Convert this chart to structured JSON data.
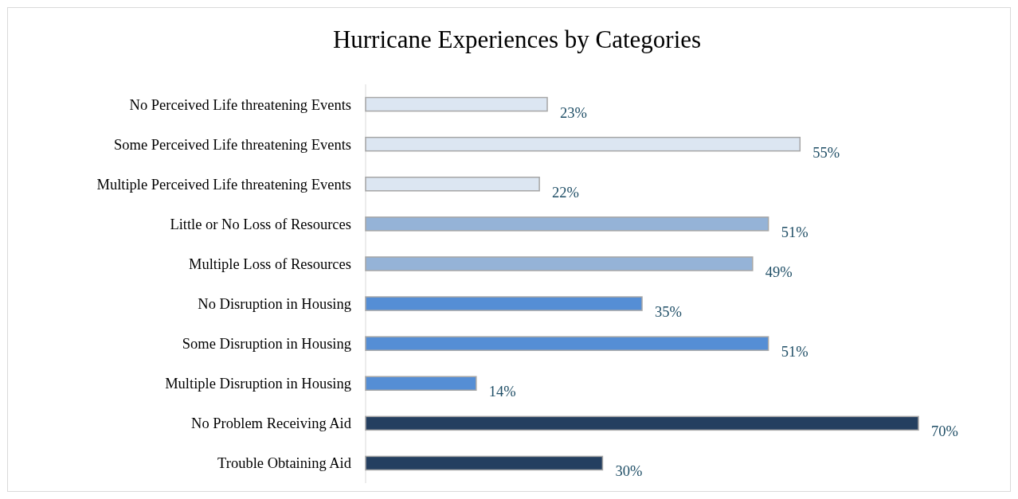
{
  "chart_data": {
    "type": "bar",
    "orientation": "horizontal",
    "title": "Hurricane Experiences by Categories",
    "categories": [
      "No Perceived Life threatening Events",
      "Some Perceived Life threatening Events",
      "Multiple Perceived Life threatening Events",
      "Little or No Loss of Resources",
      "Multiple Loss of Resources",
      "No Disruption in Housing",
      "Some Disruption in Housing",
      "Multiple Disruption in Housing",
      "No Problem Receiving Aid",
      "Trouble Obtaining Aid"
    ],
    "values": [
      23,
      55,
      22,
      51,
      49,
      35,
      51,
      14,
      70,
      30
    ],
    "value_labels": [
      "23%",
      "55%",
      "22%",
      "51%",
      "49%",
      "35%",
      "51%",
      "14%",
      "70%",
      "30%"
    ],
    "colors": [
      "#dce6f2",
      "#dce6f2",
      "#dce6f2",
      "#95b3d7",
      "#95b3d7",
      "#558ed5",
      "#558ed5",
      "#558ed5",
      "#243f60",
      "#243f60"
    ]
  }
}
